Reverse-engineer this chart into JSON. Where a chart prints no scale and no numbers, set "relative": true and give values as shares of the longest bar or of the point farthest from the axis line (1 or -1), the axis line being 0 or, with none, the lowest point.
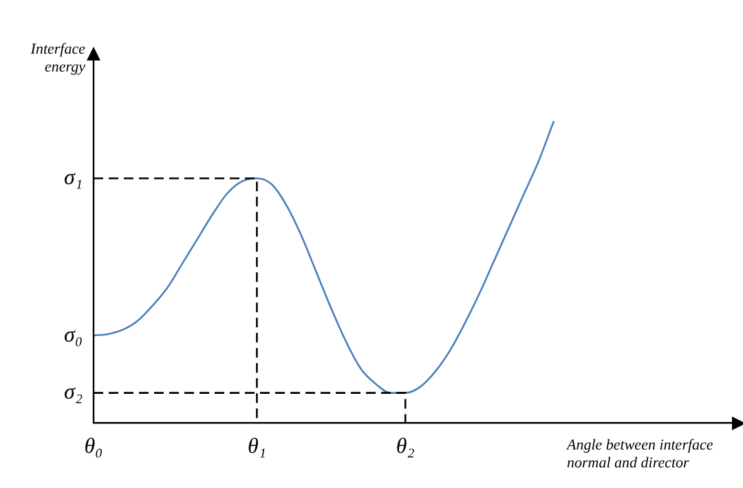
{
  "chart_data": {
    "type": "line",
    "relative": true,
    "color": "#4a7ebb",
    "marker": "none",
    "line_style": "solid",
    "grid": false,
    "legend": false,
    "xlabel": "Angle between interface normal and director",
    "ylabel": "Interface energy",
    "categories": [
      "θ₀",
      null,
      null,
      null,
      null,
      null,
      null,
      null,
      null,
      null,
      null,
      "θ₁",
      null,
      null,
      null,
      null,
      null,
      null,
      null,
      null,
      null,
      "θ₂",
      null,
      null,
      null,
      null,
      null,
      null,
      null,
      null,
      null,
      null,
      null,
      null,
      null,
      null,
      null,
      null,
      null,
      null,
      null,
      null,
      null,
      null
    ],
    "values": [
      0.29,
      0.295,
      0.31,
      0.34,
      0.39,
      0.45,
      0.53,
      0.61,
      0.69,
      0.76,
      0.8,
      0.81,
      0.79,
      0.72,
      0.62,
      0.5,
      0.38,
      0.27,
      0.18,
      0.13,
      0.1,
      0.1,
      0.12,
      0.17,
      0.24,
      0.33,
      0.43,
      0.54,
      0.65,
      0.76,
      0.87,
      1.0,
      null,
      null,
      null,
      null,
      null,
      null,
      null,
      null,
      null,
      null,
      null,
      null
    ],
    "annotations": [
      {
        "text": "σ₀",
        "x": "θ₀",
        "y": 0.29
      }
    ],
    "ref_lines": [
      {
        "axis": "y",
        "value": 0.81,
        "label": "σ₁",
        "line_style": "dashed"
      },
      {
        "axis": "y",
        "value": 0.1,
        "label": "σ₂",
        "line_style": "dashed"
      }
    ]
  }
}
